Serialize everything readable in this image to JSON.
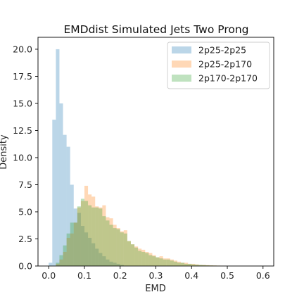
{
  "chart_data": {
    "type": "bar",
    "subtype": "overlaid-histogram",
    "title": "EMDdist Simulated Jets Two Prong",
    "xlabel": "EMD",
    "ylabel": "Density",
    "xlim": [
      -0.03,
      0.63
    ],
    "ylim": [
      0,
      21.1
    ],
    "xticks": [
      "0.0",
      "0.1",
      "0.2",
      "0.3",
      "0.4",
      "0.5",
      "0.6"
    ],
    "xtick_values": [
      0.0,
      0.1,
      0.2,
      0.3,
      0.4,
      0.5,
      0.6
    ],
    "yticks": [
      "0.0",
      "2.5",
      "5.0",
      "7.5",
      "10.0",
      "12.5",
      "15.0",
      "17.5",
      "20.0"
    ],
    "ytick_values": [
      0.0,
      2.5,
      5.0,
      7.5,
      10.0,
      12.5,
      15.0,
      17.5,
      20.0
    ],
    "bin_width": 0.01,
    "grid": false,
    "legend_position": "top-right",
    "series": [
      {
        "name": "2p25-2p25",
        "color": "#1f77b4",
        "bin_start": 0.0,
        "values": [
          0.3,
          13.5,
          20.0,
          15.0,
          12.1,
          11.0,
          7.5,
          5.3,
          4.9,
          3.7,
          3.1,
          2.6,
          2.1,
          1.6,
          1.2,
          0.9,
          0.6,
          0.4,
          0.3,
          0.2,
          0.1
        ]
      },
      {
        "name": "2p25-2p170",
        "color": "#ff7f0e",
        "bin_start": 0.0,
        "values": [
          0,
          0,
          0.2,
          0.6,
          1.3,
          2.6,
          3.0,
          4.0,
          5.4,
          6.0,
          7.4,
          6.6,
          6.4,
          5.5,
          5.4,
          5.6,
          4.5,
          4.4,
          3.8,
          3.5,
          3.2,
          3.3,
          2.3,
          2.0,
          1.8,
          1.6,
          1.5,
          1.3,
          1.2,
          1.0,
          0.8,
          0.9,
          0.7,
          0.7,
          0.6,
          0.5,
          0.4,
          0.3,
          0.3,
          0.2,
          0.2,
          0.15,
          0.1,
          0.1,
          0.08,
          0.06,
          0.05,
          0.04,
          0.03,
          0.02
        ]
      },
      {
        "name": "2p170-2p170",
        "color": "#2ca02c",
        "bin_start": 0.0,
        "values": [
          0,
          0,
          0.3,
          1.0,
          1.9,
          3.0,
          4.0,
          4.0,
          5.5,
          6.2,
          6.0,
          5.6,
          5.4,
          5.4,
          5.3,
          4.6,
          4.2,
          3.8,
          3.5,
          3.4,
          3.1,
          3.0,
          2.3,
          2.0,
          1.7,
          1.4,
          1.3,
          1.2,
          1.0,
          0.9,
          0.8,
          0.7,
          0.6,
          0.6,
          0.5,
          0.4,
          0.3,
          0.3,
          0.2,
          0.2,
          0.15,
          0.12,
          0.1,
          0.08,
          0.06,
          0.05,
          0.04,
          0.03
        ]
      }
    ]
  }
}
